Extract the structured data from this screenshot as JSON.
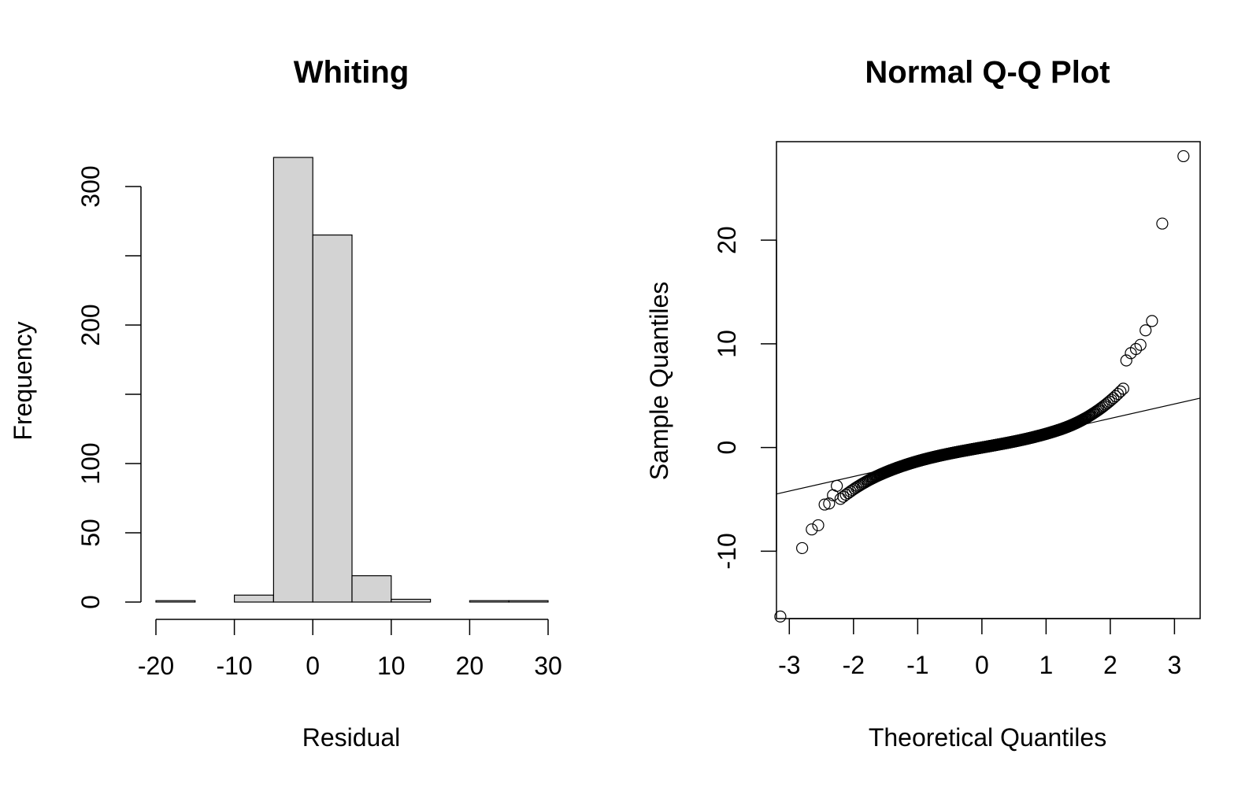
{
  "chart_data": [
    {
      "type": "bar",
      "subtype": "histogram",
      "title": "Whiting",
      "xlabel": "Residual",
      "ylabel": "Frequency",
      "bin_edges": [
        -20,
        -15,
        -10,
        -5,
        0,
        5,
        10,
        15,
        20,
        25,
        30
      ],
      "values": [
        1,
        0,
        5,
        321,
        265,
        19,
        2,
        0,
        1,
        1
      ],
      "xlim": [
        -20,
        30
      ],
      "ylim": [
        0,
        330
      ],
      "x_ticks": [
        -20,
        -10,
        0,
        10,
        20,
        30
      ],
      "y_ticks": [
        0,
        50,
        100,
        150,
        200,
        250,
        300
      ],
      "y_tick_labels": [
        "0",
        "50",
        "100",
        "",
        "200",
        "",
        "300"
      ],
      "bar_color": "#d3d3d3",
      "grid": false
    },
    {
      "type": "scatter",
      "subtype": "qq",
      "title": "Normal Q-Q Plot",
      "xlabel": "Theoretical Quantiles",
      "ylabel": "Sample Quantiles",
      "xlim": [
        -3.2,
        3.4
      ],
      "ylim": [
        -16.5,
        29.5
      ],
      "x_ticks": [
        -3,
        -2,
        -1,
        0,
        1,
        2,
        3
      ],
      "y_ticks": [
        -10,
        0,
        10,
        20
      ],
      "marker": "open-circle",
      "grid": false,
      "reference_line": {
        "slope": 1.4,
        "intercept": 0.0
      },
      "n_points": 615,
      "tail_points": [
        {
          "x": -3.14,
          "y": -16.3
        },
        {
          "x": -2.8,
          "y": -9.7
        },
        {
          "x": -2.65,
          "y": -7.9
        },
        {
          "x": -2.55,
          "y": -7.5
        },
        {
          "x": -2.45,
          "y": -5.5
        },
        {
          "x": -2.38,
          "y": -5.4
        },
        {
          "x": -2.32,
          "y": -4.6
        },
        {
          "x": -2.26,
          "y": -3.7
        },
        {
          "x": 2.25,
          "y": 8.4
        },
        {
          "x": 2.32,
          "y": 9.1
        },
        {
          "x": 2.4,
          "y": 9.5
        },
        {
          "x": 2.47,
          "y": 9.9
        },
        {
          "x": 2.55,
          "y": 11.3
        },
        {
          "x": 2.65,
          "y": 12.2
        },
        {
          "x": 2.81,
          "y": 21.6
        },
        {
          "x": 3.14,
          "y": 28.1
        }
      ]
    }
  ]
}
